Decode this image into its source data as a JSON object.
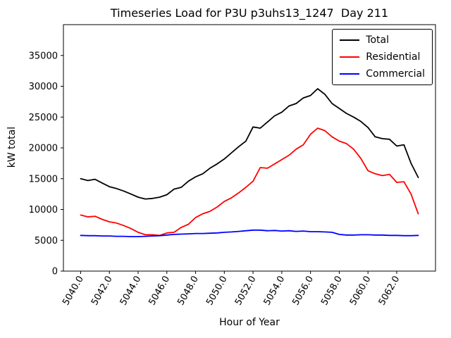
{
  "chart_data": {
    "type": "line",
    "title": "Timeseries Load for P3U p3uhs13_1247  Day 211",
    "xlabel": "Hour of Year",
    "ylabel": "kW total",
    "xlim": [
      5038.8,
      5064.7
    ],
    "ylim": [
      0,
      40000
    ],
    "grid": false,
    "legend_position": "upper right",
    "xticks": {
      "values": [
        5040,
        5042,
        5044,
        5046,
        5048,
        5050,
        5052,
        5054,
        5056,
        5058,
        5060,
        5062
      ],
      "labels": [
        "5040.0",
        "5042.0",
        "5044.0",
        "5046.0",
        "5048.0",
        "5050.0",
        "5052.0",
        "5054.0",
        "5056.0",
        "5058.0",
        "5060.0",
        "5062.0"
      ]
    },
    "yticks": {
      "values": [
        0,
        5000,
        10000,
        15000,
        20000,
        25000,
        30000,
        35000
      ],
      "labels": [
        "0",
        "5000",
        "10000",
        "15000",
        "20000",
        "25000",
        "30000",
        "35000"
      ]
    },
    "x": [
      5040.0,
      5040.5,
      5041.0,
      5041.5,
      5042.0,
      5042.5,
      5043.0,
      5043.5,
      5044.0,
      5044.5,
      5045.0,
      5045.5,
      5046.0,
      5046.5,
      5047.0,
      5047.5,
      5048.0,
      5048.5,
      5049.0,
      5049.5,
      5050.0,
      5050.5,
      5051.0,
      5051.5,
      5052.0,
      5052.5,
      5053.0,
      5053.5,
      5054.0,
      5054.5,
      5055.0,
      5055.5,
      5056.0,
      5056.5,
      5057.0,
      5057.5,
      5058.0,
      5058.5,
      5059.0,
      5059.5,
      5060.0,
      5060.5,
      5061.0,
      5061.5,
      5062.0,
      5062.5,
      5063.0,
      5063.5
    ],
    "series": [
      {
        "name": "Total",
        "color": "#000000",
        "values": [
          15000,
          14700,
          14900,
          14300,
          13700,
          13400,
          13000,
          12500,
          12000,
          11700,
          11800,
          12000,
          12400,
          13300,
          13600,
          14600,
          15300,
          15800,
          16700,
          17400,
          18200,
          19200,
          20200,
          21100,
          23400,
          23200,
          24200,
          25200,
          25800,
          26800,
          27200,
          28100,
          28500,
          29600,
          28700,
          27200,
          26400,
          25600,
          25000,
          24300,
          23300,
          21800,
          21500,
          21400,
          20300,
          20500,
          17500,
          15200
        ]
      },
      {
        "name": "Residential",
        "color": "#ff0000",
        "values": [
          9100,
          8800,
          8900,
          8400,
          8000,
          7800,
          7400,
          6900,
          6300,
          5900,
          5900,
          5800,
          6200,
          6300,
          7100,
          7600,
          8700,
          9300,
          9700,
          10400,
          11300,
          11900,
          12700,
          13600,
          14600,
          16800,
          16700,
          17400,
          18100,
          18800,
          19800,
          20500,
          22200,
          23200,
          22800,
          21800,
          21100,
          20700,
          19800,
          18300,
          16300,
          15800,
          15500,
          15700,
          14400,
          14500,
          12500,
          9300
        ]
      },
      {
        "name": "Commercial",
        "color": "#0000ff",
        "values": [
          5800,
          5750,
          5750,
          5700,
          5700,
          5650,
          5650,
          5600,
          5600,
          5650,
          5700,
          5750,
          5850,
          5950,
          6000,
          6050,
          6100,
          6100,
          6150,
          6200,
          6300,
          6350,
          6450,
          6550,
          6650,
          6650,
          6550,
          6600,
          6500,
          6550,
          6450,
          6500,
          6400,
          6400,
          6350,
          6300,
          5950,
          5850,
          5850,
          5900,
          5900,
          5850,
          5850,
          5800,
          5800,
          5750,
          5750,
          5800
        ]
      }
    ]
  }
}
